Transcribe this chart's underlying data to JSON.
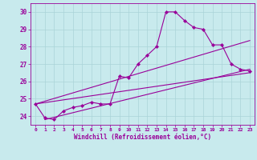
{
  "title": "",
  "xlabel": "Windchill (Refroidissement éolien,°C)",
  "ylabel": "",
  "xlim": [
    -0.5,
    23.5
  ],
  "ylim": [
    23.5,
    30.5
  ],
  "xticks": [
    0,
    1,
    2,
    3,
    4,
    5,
    6,
    7,
    8,
    9,
    10,
    11,
    12,
    13,
    14,
    15,
    16,
    17,
    18,
    19,
    20,
    21,
    22,
    23
  ],
  "yticks": [
    24,
    25,
    26,
    27,
    28,
    29,
    30
  ],
  "bg_color": "#c8eaed",
  "grid_color": "#aad4d8",
  "line_color": "#990099",
  "line_width": 0.8,
  "marker": "D",
  "marker_size": 2.2,
  "series": [
    [
      0,
      24.7
    ],
    [
      1,
      23.9
    ],
    [
      2,
      23.8
    ],
    [
      3,
      24.3
    ],
    [
      4,
      24.5
    ],
    [
      5,
      24.6
    ],
    [
      6,
      24.8
    ],
    [
      7,
      24.7
    ],
    [
      8,
      24.7
    ],
    [
      9,
      26.3
    ],
    [
      10,
      26.2
    ],
    [
      11,
      27.0
    ],
    [
      12,
      27.5
    ],
    [
      13,
      28.0
    ],
    [
      14,
      30.0
    ],
    [
      15,
      30.0
    ],
    [
      16,
      29.5
    ],
    [
      17,
      29.1
    ],
    [
      18,
      29.0
    ],
    [
      19,
      28.1
    ],
    [
      20,
      28.1
    ],
    [
      21,
      27.0
    ],
    [
      22,
      26.7
    ],
    [
      23,
      26.6
    ]
  ],
  "trend_lines": [
    {
      "x": [
        0,
        23
      ],
      "y": [
        24.7,
        26.5
      ]
    },
    {
      "x": [
        1,
        23
      ],
      "y": [
        23.8,
        26.7
      ]
    },
    {
      "x": [
        0,
        23
      ],
      "y": [
        24.7,
        28.35
      ]
    }
  ]
}
